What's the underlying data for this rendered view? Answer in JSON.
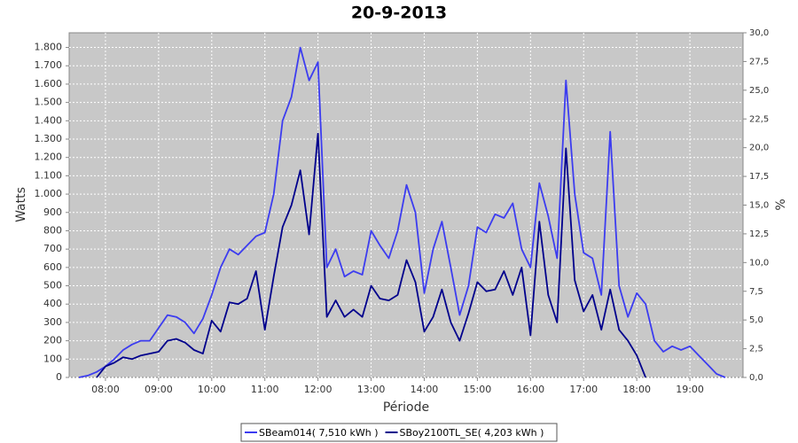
{
  "chart_data": {
    "type": "line",
    "title": "20-9-2013",
    "y_label": "Watts",
    "y2_label": "%",
    "x_label": "Période",
    "x": [
      "07:30",
      "07:40",
      "07:50",
      "08:00",
      "08:10",
      "08:20",
      "08:30",
      "08:40",
      "08:50",
      "09:00",
      "09:10",
      "09:20",
      "09:30",
      "09:40",
      "09:50",
      "10:00",
      "10:10",
      "10:20",
      "10:30",
      "10:40",
      "10:50",
      "11:00",
      "11:10",
      "11:20",
      "11:30",
      "11:40",
      "11:50",
      "12:00",
      "12:10",
      "12:20",
      "12:30",
      "12:40",
      "12:50",
      "13:00",
      "13:10",
      "13:20",
      "13:30",
      "13:40",
      "13:50",
      "14:00",
      "14:10",
      "14:20",
      "14:30",
      "14:40",
      "14:50",
      "15:00",
      "15:10",
      "15:20",
      "15:30",
      "15:40",
      "15:50",
      "16:00",
      "16:10",
      "16:20",
      "16:30",
      "16:40",
      "16:50",
      "17:00",
      "17:10",
      "17:20",
      "17:30",
      "17:40",
      "17:50",
      "18:00",
      "18:10",
      "18:20",
      "18:30",
      "18:40",
      "18:50",
      "19:00",
      "19:10",
      "19:20",
      "19:30",
      "19:40"
    ],
    "xlim": [
      "07:19",
      "20:00"
    ],
    "xticks": [
      "08:00",
      "09:00",
      "10:00",
      "11:00",
      "12:00",
      "13:00",
      "14:00",
      "15:00",
      "16:00",
      "17:00",
      "18:00",
      "19:00"
    ],
    "ylim": [
      0,
      1880
    ],
    "yticks": [
      0,
      {
        "value": 100,
        "label": "100"
      },
      {
        "value": 200,
        "label": "200"
      },
      {
        "value": 300,
        "label": "300"
      },
      {
        "value": 400,
        "label": "400"
      },
      {
        "value": 500,
        "label": "500"
      },
      {
        "value": 600,
        "label": "600"
      },
      {
        "value": 700,
        "label": "700"
      },
      {
        "value": 800,
        "label": "800"
      },
      {
        "value": 900,
        "label": "900"
      },
      {
        "value": 1000,
        "label": "1.000"
      },
      {
        "value": 1100,
        "label": "1.100"
      },
      {
        "value": 1200,
        "label": "1.200"
      },
      {
        "value": 1300,
        "label": "1.300"
      },
      {
        "value": 1400,
        "label": "1.400"
      },
      {
        "value": 1500,
        "label": "1.500"
      },
      {
        "value": 1600,
        "label": "1.600"
      },
      {
        "value": 1700,
        "label": "1.700"
      },
      {
        "value": 1800,
        "label": "1.800"
      }
    ],
    "y2lim": [
      0,
      30
    ],
    "y2ticks": [
      {
        "value": 0,
        "label": "0,0"
      },
      {
        "value": 2.5,
        "label": "2,5"
      },
      {
        "value": 5,
        "label": "5,0"
      },
      {
        "value": 7.5,
        "label": "7,5"
      },
      {
        "value": 10,
        "label": "10,0"
      },
      {
        "value": 12.5,
        "label": "12,5"
      },
      {
        "value": 15,
        "label": "15,0"
      },
      {
        "value": 17.5,
        "label": "17,5"
      },
      {
        "value": 20,
        "label": "20,0"
      },
      {
        "value": 22.5,
        "label": "22,5"
      },
      {
        "value": 25,
        "label": "25,0"
      },
      {
        "value": 27.5,
        "label": "27,5"
      },
      {
        "value": 30,
        "label": "30,0"
      }
    ],
    "grid": true,
    "legend": "bottom",
    "series": [
      {
        "name": "SBeam014( 7,510 kWh )",
        "color": "#3c3cf0",
        "values": [
          0,
          10,
          30,
          60,
          100,
          150,
          180,
          200,
          200,
          270,
          340,
          330,
          300,
          240,
          320,
          450,
          600,
          700,
          670,
          720,
          770,
          790,
          1000,
          1400,
          1530,
          1800,
          1620,
          1720,
          600,
          700,
          550,
          580,
          560,
          800,
          720,
          650,
          800,
          1050,
          900,
          460,
          700,
          850,
          600,
          340,
          500,
          820,
          790,
          890,
          870,
          950,
          700,
          600,
          1060,
          880,
          650,
          1620,
          1000,
          680,
          650,
          450,
          1340,
          500,
          330,
          460,
          400,
          200,
          140,
          170,
          150,
          170,
          120,
          70,
          20,
          0
        ]
      },
      {
        "name": "SBoy2100TL_SE( 4,203 kWh )",
        "color": "#00008c",
        "values": [
          null,
          null,
          0,
          60,
          80,
          110,
          100,
          120,
          130,
          140,
          200,
          210,
          190,
          150,
          130,
          310,
          250,
          410,
          400,
          430,
          580,
          260,
          550,
          820,
          940,
          1130,
          780,
          1330,
          330,
          420,
          330,
          370,
          330,
          500,
          430,
          420,
          450,
          640,
          520,
          250,
          330,
          480,
          300,
          200,
          350,
          520,
          470,
          480,
          580,
          450,
          600,
          230,
          850,
          450,
          300,
          1250,
          530,
          360,
          450,
          260,
          480,
          260,
          200,
          120,
          0,
          null,
          null,
          null,
          null,
          null,
          null,
          null,
          null,
          null
        ]
      }
    ]
  }
}
